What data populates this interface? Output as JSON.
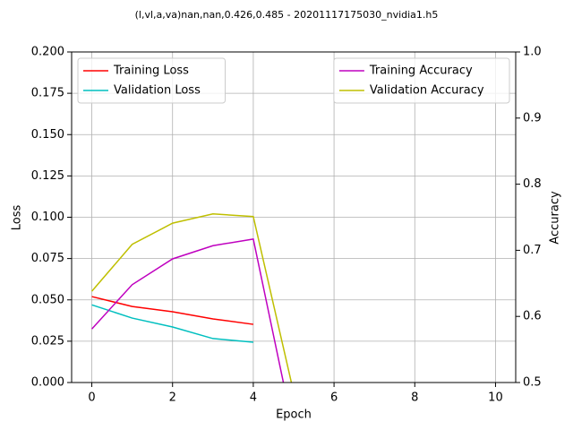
{
  "chart_data": {
    "type": "line",
    "title": "(l,vl,a,va)nan,nan,0.426,0.485 - 20201117175030_nvidia1.h5",
    "x_label": "Epoch",
    "y_label": "Loss",
    "y2_label": "Accuracy",
    "x": [
      0,
      1,
      2,
      3,
      4,
      5,
      6,
      7,
      8,
      9,
      10
    ],
    "xlim": [
      -0.5,
      10.5
    ],
    "xticks": [
      0,
      2,
      4,
      6,
      8,
      10
    ],
    "ylim": [
      0,
      0.2
    ],
    "yticks": [
      {
        "value": 0,
        "label": "0.000"
      },
      {
        "value": 0.025,
        "label": "0.025"
      },
      {
        "value": 0.05,
        "label": "0.050"
      },
      {
        "value": 0.075,
        "label": "0.075"
      },
      {
        "value": 0.1,
        "label": "0.100"
      },
      {
        "value": 0.125,
        "label": "0.125"
      },
      {
        "value": 0.15,
        "label": "0.150"
      },
      {
        "value": 0.175,
        "label": "0.175"
      },
      {
        "value": 0.2,
        "label": "0.200"
      }
    ],
    "y2lim": [
      0.5,
      1.0
    ],
    "y2ticks": [
      0.5,
      0.6,
      0.7,
      0.8,
      0.9,
      {
        "value": 1.0,
        "label": "1.0"
      }
    ],
    "grid": true,
    "legend": "upper left",
    "legend2": "upper right",
    "series": [
      {
        "name": "Training Loss",
        "color": "#ff0000",
        "values": [
          0.052,
          0.046,
          0.0428,
          0.0385,
          0.0352,
          null,
          null,
          null,
          null,
          null,
          null
        ]
      },
      {
        "name": "Validation Loss",
        "color": "#00bfbf",
        "values": [
          0.047,
          0.039,
          0.0336,
          0.0266,
          0.0244,
          null,
          null,
          null,
          null,
          null,
          null
        ]
      },
      {
        "name": "Training Accuracy",
        "color": "#bf00bf",
        "axis": "y2",
        "values": [
          0.581,
          0.648,
          0.687,
          0.707,
          0.717,
          0.426,
          null,
          null,
          null,
          null,
          null
        ]
      },
      {
        "name": "Validation Accuracy",
        "color": "#bfbf00",
        "axis": "y2",
        "values": [
          0.638,
          0.709,
          0.741,
          0.755,
          0.751,
          0.485,
          null,
          null,
          null,
          null,
          null
        ]
      }
    ]
  }
}
